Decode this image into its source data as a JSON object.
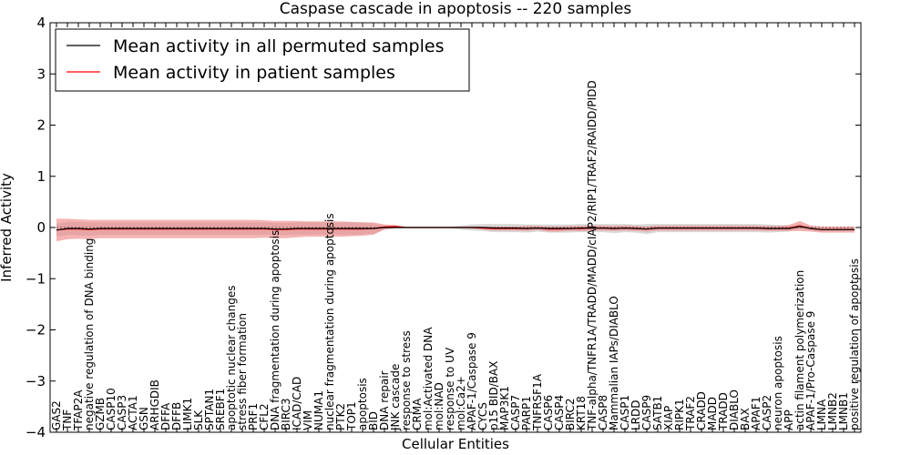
{
  "chart_data": {
    "type": "line",
    "title": "Caspase cascade in apoptosis -- 220 samples",
    "xlabel": "Cellular Entities",
    "ylabel": "Inferred Activity",
    "ylim": [
      -4,
      4
    ],
    "yticks": [
      4,
      3,
      2,
      1,
      0,
      -1,
      -2,
      -3,
      -4
    ],
    "ytick_labels": [
      "4",
      "3",
      "2",
      "1",
      "0",
      "−1",
      "−2",
      "−3",
      "−4"
    ],
    "grid": false,
    "legend_position": "top-left",
    "categories": [
      "GAS2",
      "TNF",
      "TFAP2A",
      "negative regulation of DNA binding",
      "GZMB",
      "CASP10",
      "CASP3",
      "ACTA1",
      "GSN",
      "ARHGDIB",
      "DFFA",
      "DFFB",
      "LIMK1",
      "SLK",
      "SPTAN1",
      "SREBF1",
      "apoptotic nuclear changes",
      "stress fiber formation",
      "PRF1",
      "CFL2",
      "DNA fragmentation during apoptosis",
      "BIRC3",
      "ICAD/CAD",
      "VIM",
      "NUMA1",
      "nuclear fragmentation during apoptosis",
      "PTK2",
      "TOP1",
      "apoptosis",
      "BID",
      "DNA repair",
      "JNK cascade",
      "response to stress",
      "CRMA",
      "mol:Activated DNA",
      "mol:NAD",
      "response to UV",
      "mol:Ca2+",
      "APAF-1/Caspase 9",
      "CYCS",
      "p15 BID/BAX",
      "MAP3K1",
      "CASP7",
      "PARP1",
      "TNFRSF1A",
      "CASP6",
      "CASP4",
      "BIRC2",
      "KRT18",
      "TNF-alpha/TNFR1A/TRADD/MADD/cIAP2/RIP1/TRAF2/RAIDD/PIDD",
      "CASP8",
      "Mammalian IAPs/DIABLO",
      "CASP1",
      "LRDD",
      "CASP9",
      "SATB1",
      "XIAP",
      "RIPK1",
      "TRAF2",
      "CRADD",
      "MADD",
      "TRADD",
      "DIABLO",
      "BAX",
      "APAF1",
      "CASP2",
      "neuron apoptosis",
      "APP",
      "actin filament polymerization",
      "APAF-1/Pro-Caspase 9",
      "LMNA",
      "LMNB2",
      "LMNB1",
      "positive regulation of apoptosis"
    ],
    "series": [
      {
        "name": "Mean activity in all permuted samples",
        "color": "#000000",
        "values": [
          -0.05,
          -0.02,
          -0.02,
          -0.03,
          -0.02,
          -0.02,
          -0.02,
          -0.02,
          -0.02,
          -0.02,
          -0.02,
          -0.02,
          -0.02,
          -0.02,
          -0.02,
          -0.02,
          -0.02,
          -0.02,
          -0.02,
          -0.02,
          -0.03,
          -0.03,
          -0.02,
          -0.02,
          -0.02,
          -0.02,
          -0.02,
          -0.02,
          -0.02,
          -0.02,
          0.0,
          0.0,
          0.0,
          0.0,
          0.0,
          0.0,
          0.0,
          0.0,
          0.0,
          0.0,
          -0.01,
          -0.01,
          -0.01,
          -0.02,
          -0.01,
          -0.02,
          -0.02,
          -0.02,
          -0.01,
          -0.01,
          -0.01,
          -0.02,
          -0.01,
          -0.02,
          -0.03,
          -0.01,
          -0.01,
          -0.01,
          -0.01,
          -0.01,
          -0.01,
          -0.01,
          -0.01,
          -0.01,
          -0.01,
          -0.02,
          -0.02,
          -0.02,
          0.02,
          -0.02,
          -0.04,
          -0.04,
          -0.04,
          -0.04
        ],
        "band": [
          0.12,
          0.13,
          0.13,
          0.13,
          0.12,
          0.12,
          0.12,
          0.12,
          0.12,
          0.12,
          0.12,
          0.12,
          0.12,
          0.12,
          0.12,
          0.12,
          0.12,
          0.12,
          0.12,
          0.12,
          0.12,
          0.12,
          0.12,
          0.12,
          0.12,
          0.12,
          0.12,
          0.12,
          0.12,
          0.1,
          0.04,
          0.02,
          0.01,
          0.01,
          0.01,
          0.01,
          0.01,
          0.04,
          0.06,
          0.07,
          0.08,
          0.08,
          0.08,
          0.08,
          0.07,
          0.08,
          0.08,
          0.08,
          0.08,
          0.08,
          0.08,
          0.09,
          0.08,
          0.08,
          0.1,
          0.08,
          0.08,
          0.08,
          0.08,
          0.08,
          0.08,
          0.08,
          0.08,
          0.08,
          0.08,
          0.08,
          0.07,
          0.06,
          0.05,
          0.04,
          0.04,
          0.04,
          0.04,
          0.04
        ]
      },
      {
        "name": "Mean activity in patient samples",
        "color": "#ff0000",
        "values": [
          -0.05,
          -0.03,
          -0.03,
          -0.04,
          -0.03,
          -0.03,
          -0.03,
          -0.03,
          -0.03,
          -0.03,
          -0.03,
          -0.03,
          -0.03,
          -0.03,
          -0.03,
          -0.03,
          -0.03,
          -0.03,
          -0.03,
          -0.03,
          -0.04,
          -0.04,
          -0.03,
          -0.03,
          -0.03,
          -0.03,
          -0.03,
          -0.03,
          -0.03,
          -0.02,
          0.01,
          0.02,
          0.0,
          0.0,
          0.0,
          0.0,
          0.0,
          0.0,
          0.0,
          -0.01,
          -0.02,
          -0.02,
          -0.02,
          -0.02,
          -0.01,
          -0.03,
          -0.03,
          -0.02,
          -0.02,
          -0.01,
          -0.01,
          -0.02,
          -0.01,
          -0.02,
          -0.03,
          -0.01,
          -0.01,
          -0.01,
          -0.01,
          -0.01,
          -0.01,
          -0.01,
          -0.01,
          -0.01,
          -0.01,
          -0.02,
          -0.02,
          -0.01,
          0.03,
          -0.02,
          -0.04,
          -0.04,
          -0.04,
          -0.04
        ],
        "band": [
          0.22,
          0.2,
          0.19,
          0.19,
          0.18,
          0.18,
          0.18,
          0.18,
          0.18,
          0.18,
          0.18,
          0.18,
          0.18,
          0.18,
          0.18,
          0.18,
          0.18,
          0.18,
          0.18,
          0.17,
          0.17,
          0.17,
          0.16,
          0.15,
          0.15,
          0.15,
          0.15,
          0.14,
          0.13,
          0.12,
          0.05,
          0.03,
          0.01,
          0.01,
          0.01,
          0.01,
          0.01,
          0.01,
          0.02,
          0.03,
          0.04,
          0.04,
          0.04,
          0.05,
          0.04,
          0.05,
          0.05,
          0.05,
          0.05,
          0.05,
          0.05,
          0.05,
          0.05,
          0.05,
          0.05,
          0.05,
          0.05,
          0.05,
          0.05,
          0.05,
          0.05,
          0.05,
          0.05,
          0.05,
          0.05,
          0.05,
          0.05,
          0.06,
          0.1,
          0.06,
          0.06,
          0.06,
          0.06,
          0.06
        ]
      }
    ],
    "colors": {
      "band_red": "#f08080",
      "band_gray": "#cccccc",
      "line_black": "#000000",
      "line_red": "#ff0000"
    }
  }
}
